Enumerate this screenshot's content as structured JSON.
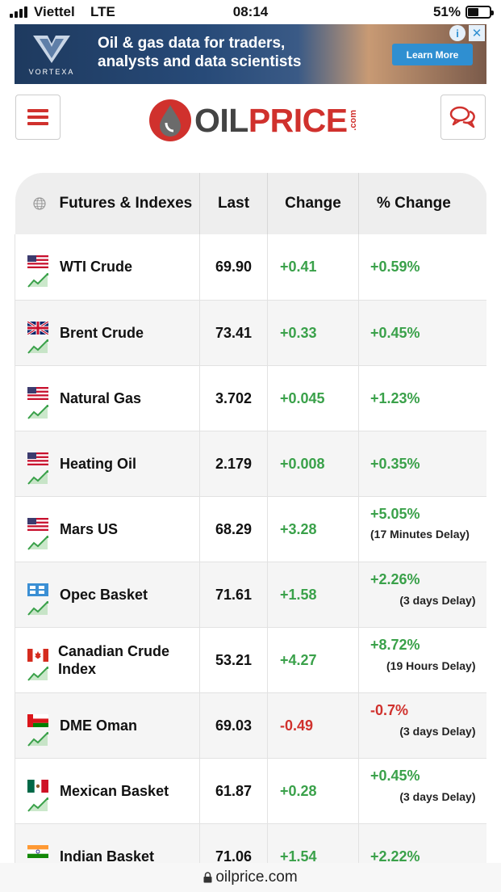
{
  "status": {
    "carrier": "Viettel",
    "network": "LTE",
    "time": "08:14",
    "battery": "51%"
  },
  "ad": {
    "brand": "VORTEXA",
    "headline_1": "Oil & gas data for traders,",
    "headline_2": "analysts and data scientists",
    "cta": "Learn More",
    "info": "i",
    "close": "✕"
  },
  "header": {
    "logo_oil": "OIL",
    "logo_price": "PRICE",
    "logo_com": ".com"
  },
  "table": {
    "headers": [
      "Futures & Indexes",
      "Last",
      "Change",
      "% Change"
    ],
    "rows": [
      {
        "name": "WTI Crude",
        "flag": "us-flag",
        "last": "69.90",
        "change": "+0.41",
        "pct": "+0.59%",
        "delay": ""
      },
      {
        "name": "Brent Crude",
        "flag": "uk-flag",
        "last": "73.41",
        "change": "+0.33",
        "pct": "+0.45%",
        "delay": ""
      },
      {
        "name": "Natural Gas",
        "flag": "us-flag",
        "last": "3.702",
        "change": "+0.045",
        "pct": "+1.23%",
        "delay": ""
      },
      {
        "name": "Heating Oil",
        "flag": "us-flag",
        "last": "2.179",
        "change": "+0.008",
        "pct": "+0.35%",
        "delay": ""
      },
      {
        "name": "Mars US",
        "flag": "us-flag",
        "last": "68.29",
        "change": "+3.28",
        "pct": "+5.05%",
        "delay": "(17 Minutes Delay)"
      },
      {
        "name": "Opec Basket",
        "flag": "opec-flag",
        "last": "71.61",
        "change": "+1.58",
        "pct": "+2.26%",
        "delay": "(3 days Delay)"
      },
      {
        "name": "Canadian Crude Index",
        "flag": "canada-flag",
        "last": "53.21",
        "change": "+4.27",
        "pct": "+8.72%",
        "delay": "(19 Hours Delay)"
      },
      {
        "name": "DME Oman",
        "flag": "oman-flag",
        "last": "69.03",
        "change": "-0.49",
        "pct": "-0.7%",
        "delay": "(3 days Delay)"
      },
      {
        "name": "Mexican Basket",
        "flag": "mexico-flag",
        "last": "61.87",
        "change": "+0.28",
        "pct": "+0.45%",
        "delay": "(3 days Delay)"
      },
      {
        "name": "Indian Basket",
        "flag": "india-flag",
        "last": "71.06",
        "change": "+1.54",
        "pct": "+2.22%",
        "delay": ""
      }
    ]
  },
  "url_bar": {
    "url": "oilprice.com"
  },
  "colors": {
    "positive": "#3aa14a",
    "negative": "#d0312d",
    "brand": "#d0312d"
  }
}
